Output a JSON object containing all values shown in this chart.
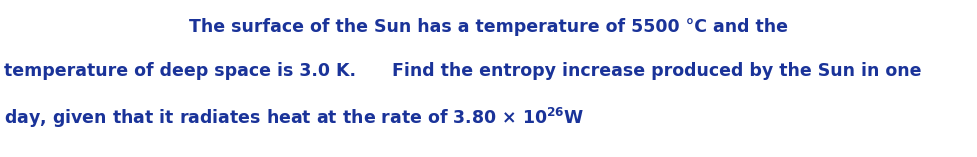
{
  "background_color": "#ffffff",
  "text_color": "#1a3399",
  "font_size": 12.5,
  "font_weight": "bold",
  "line1": "The surface of the Sun has a temperature of 5500 °C and the",
  "line2": "temperature of deep space is 3.0 K.      Find the entropy increase produced by the Sun in one",
  "line3_base": "day, given that it radiates heat at the rate of 3.80 × 10",
  "superscript": "26",
  "line3_end": "W",
  "fig_width": 9.78,
  "fig_height": 1.57,
  "dpi": 100
}
